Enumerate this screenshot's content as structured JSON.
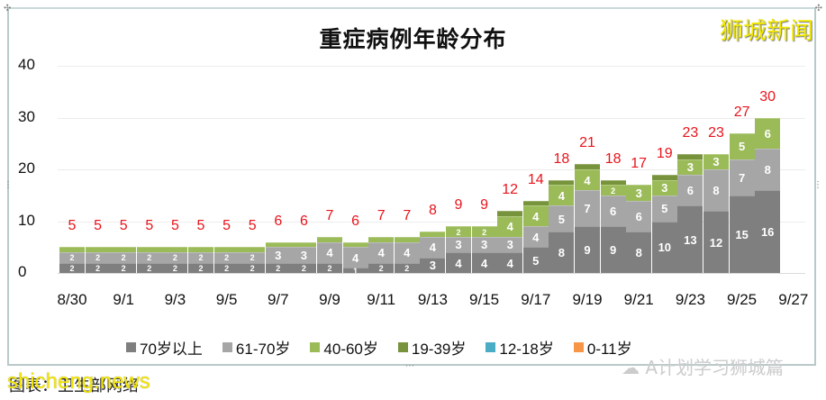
{
  "brand": "狮城新闻",
  "caption": "图表：卫生部网络",
  "watermark_text": "shicheng.news",
  "watermark_account": "A计划学习狮城篇",
  "colors": {
    "70plus": "#7f7f7f",
    "61_70": "#a6a6a6",
    "40_60": "#9bbb59",
    "19_39": "#77933c",
    "12_18": "#4bacc6",
    "0_11": "#f79646",
    "total_label": "#e8141c"
  },
  "chart_data": {
    "type": "bar",
    "stacked": true,
    "title": "重症病例年龄分布",
    "xlabel": "",
    "ylabel": "",
    "ylim": [
      0,
      40
    ],
    "yticks": [
      0,
      10,
      20,
      30,
      40
    ],
    "grid": true,
    "legend_position": "bottom",
    "categories": [
      "8/30",
      "8/31",
      "9/1",
      "9/2",
      "9/3",
      "9/4",
      "9/5",
      "9/6",
      "9/7",
      "9/8",
      "9/9",
      "9/10",
      "9/11",
      "9/12",
      "9/13",
      "9/14",
      "9/15",
      "9/16",
      "9/17",
      "9/18",
      "9/19",
      "9/20",
      "9/21",
      "9/22",
      "9/23",
      "9/24",
      "9/25",
      "9/26",
      "9/27"
    ],
    "xtick_labels": [
      "8/30",
      "9/1",
      "9/3",
      "9/5",
      "9/7",
      "9/9",
      "9/11",
      "9/13",
      "9/15",
      "9/17",
      "9/19",
      "9/21",
      "9/23",
      "9/25",
      "9/27"
    ],
    "series": [
      {
        "name": "70岁以上",
        "values": [
          2,
          2,
          2,
          2,
          2,
          2,
          2,
          2,
          2,
          2,
          2,
          1,
          2,
          2,
          3,
          4,
          4,
          4,
          5,
          8,
          9,
          9,
          8,
          10,
          13,
          12,
          15,
          16,
          0
        ]
      },
      {
        "name": "61-70岁",
        "values": [
          2,
          2,
          2,
          2,
          2,
          2,
          2,
          2,
          3,
          3,
          4,
          4,
          4,
          4,
          4,
          3,
          3,
          3,
          4,
          5,
          7,
          6,
          6,
          5,
          6,
          8,
          7,
          8,
          0
        ]
      },
      {
        "name": "40-60岁",
        "values": [
          1,
          1,
          1,
          1,
          1,
          1,
          1,
          1,
          1,
          1,
          1,
          1,
          1,
          1,
          1,
          2,
          2,
          4,
          4,
          4,
          4,
          2,
          3,
          3,
          3,
          3,
          5,
          6,
          0
        ]
      },
      {
        "name": "19-39岁",
        "values": [
          0,
          0,
          0,
          0,
          0,
          0,
          0,
          0,
          0,
          0,
          0,
          0,
          0,
          0,
          0,
          0,
          0,
          1,
          1,
          1,
          1,
          1,
          0,
          1,
          1,
          0,
          0,
          0,
          0
        ]
      },
      {
        "name": "12-18岁",
        "values": [
          0,
          0,
          0,
          0,
          0,
          0,
          0,
          0,
          0,
          0,
          0,
          0,
          0,
          0,
          0,
          0,
          0,
          0,
          0,
          0,
          0,
          0,
          0,
          0,
          0,
          0,
          0,
          0,
          0
        ]
      },
      {
        "name": "0-11岁",
        "values": [
          0,
          0,
          0,
          0,
          0,
          0,
          0,
          0,
          0,
          0,
          0,
          0,
          0,
          0,
          0,
          0,
          0,
          0,
          0,
          0,
          0,
          0,
          0,
          0,
          0,
          0,
          0,
          0,
          0
        ]
      }
    ],
    "totals": [
      5,
      5,
      5,
      5,
      5,
      5,
      5,
      5,
      6,
      6,
      7,
      6,
      7,
      7,
      8,
      9,
      9,
      12,
      14,
      18,
      21,
      18,
      17,
      19,
      23,
      23,
      27,
      30,
      null
    ]
  },
  "legend": [
    {
      "label": "70岁以上",
      "color": "#7f7f7f"
    },
    {
      "label": "61-70岁",
      "color": "#a6a6a6"
    },
    {
      "label": "40-60岁",
      "color": "#9bbb59"
    },
    {
      "label": "19-39岁",
      "color": "#77933c"
    },
    {
      "label": "12-18岁",
      "color": "#4bacc6"
    },
    {
      "label": "0-11岁",
      "color": "#f79646"
    }
  ]
}
